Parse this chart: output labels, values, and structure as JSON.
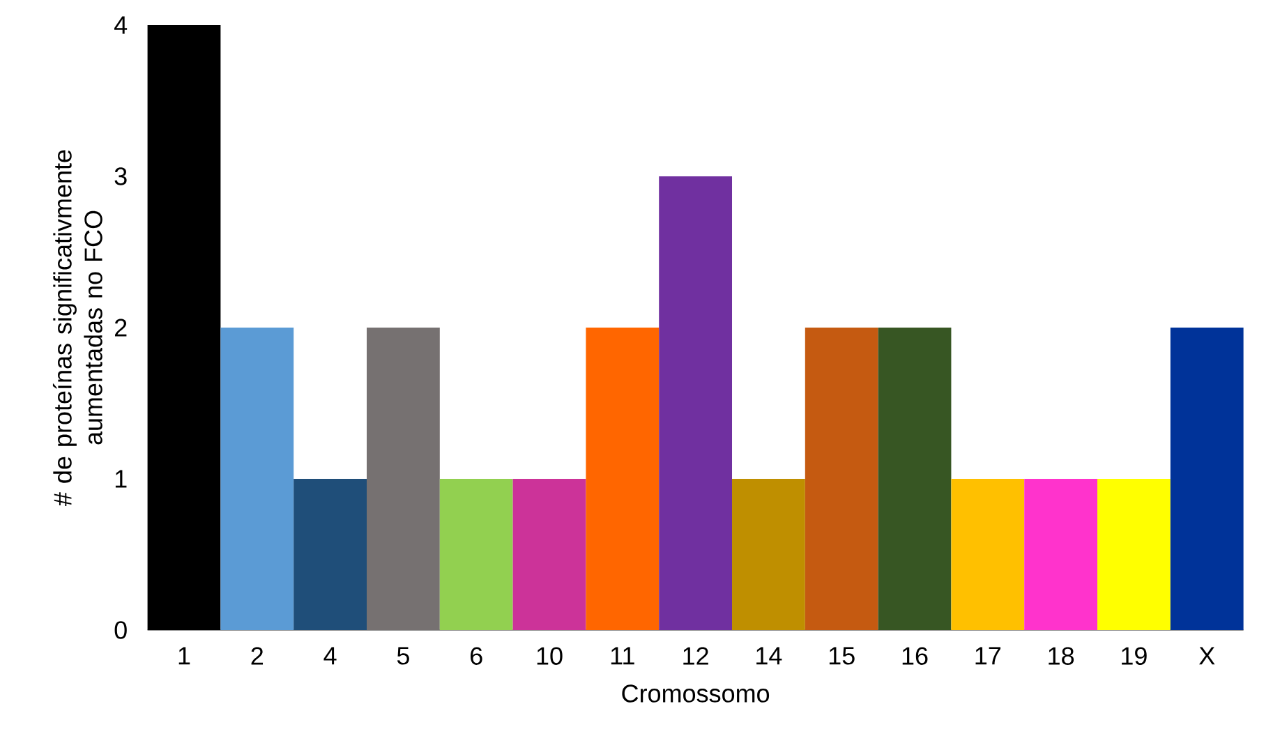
{
  "chart_data": {
    "type": "bar",
    "xlabel": "Cromossomo",
    "ylabel": "# de proteínas significativmente aumentadas no FCO",
    "categories": [
      "1",
      "2",
      "4",
      "5",
      "6",
      "10",
      "11",
      "12",
      "14",
      "15",
      "16",
      "17",
      "18",
      "19",
      "X"
    ],
    "values": [
      4,
      2,
      1,
      2,
      1,
      1,
      2,
      3,
      1,
      2,
      2,
      1,
      1,
      1,
      2
    ],
    "colors": [
      "#000000",
      "#5b9bd5",
      "#1f4e79",
      "#767171",
      "#92d050",
      "#cc3399",
      "#ff6600",
      "#7030a0",
      "#bf8f00",
      "#c55a11",
      "#375623",
      "#ffc000",
      "#ff33cc",
      "#ffff00",
      "#003399"
    ],
    "ylim": [
      0,
      4
    ],
    "yticks": [
      0,
      1,
      2,
      3,
      4
    ],
    "grid": false
  }
}
